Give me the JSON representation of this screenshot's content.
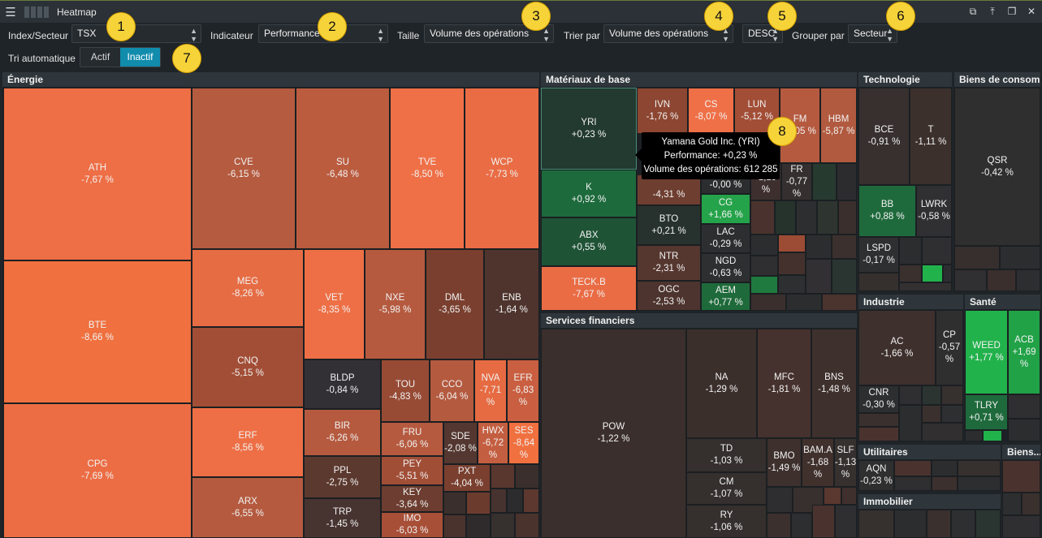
{
  "window": {
    "title": "Heatmap",
    "icons": [
      "menu-icon",
      "grip-icon"
    ],
    "controls": [
      "popout-icon",
      "pin-icon",
      "restore-icon",
      "close-icon"
    ]
  },
  "toolbar": {
    "index_label": "Index/Secteur",
    "index_value": "TSX",
    "indicator_label": "Indicateur",
    "indicator_value": "Performance",
    "size_label": "Taille",
    "size_value": "Volume des opérations",
    "sort_label": "Trier par",
    "sort_value": "Volume des opérations",
    "order_value": "DESC",
    "group_label": "Grouper par",
    "group_value": "Secteur",
    "auto_label": "Tri automatique",
    "auto_on": "Actif",
    "auto_off": "Inactif"
  },
  "badges": [
    "1",
    "2",
    "3",
    "4",
    "5",
    "6",
    "7",
    "8"
  ],
  "tooltip": {
    "name": "Yamana Gold Inc. (YRI)",
    "perf": "Performance: +0,23 %",
    "volume": "Volume des opérations: 612 285"
  },
  "colors": {
    "strong_neg": "#ef7047",
    "mid_neg": "#b65a3f",
    "dark_neg": "#3a2f2c",
    "neutral": "#2c2f31",
    "pos": "#1f6a3c",
    "strong_pos": "#22b24c"
  },
  "sectors": [
    {
      "name": "Énergie"
    },
    {
      "name": "Matériaux de base"
    },
    {
      "name": "Technologie"
    },
    {
      "name": "Biens de consom..."
    },
    {
      "name": "Services financiers"
    },
    {
      "name": "Industrie"
    },
    {
      "name": "Santé"
    },
    {
      "name": "Utilitaires"
    },
    {
      "name": "Biens..."
    },
    {
      "name": "Immobilier"
    }
  ],
  "tiles": [
    {
      "t": "ATH",
      "v": "-7,67 %"
    },
    {
      "t": "BTE",
      "v": "-8,66 %"
    },
    {
      "t": "CPG",
      "v": "-7,69 %"
    },
    {
      "t": "CVE",
      "v": "-6,15 %"
    },
    {
      "t": "SU",
      "v": "-6,48 %"
    },
    {
      "t": "TVE",
      "v": "-8,50 %"
    },
    {
      "t": "WCP",
      "v": "-7,73 %"
    },
    {
      "t": "MEG",
      "v": "-8,26 %"
    },
    {
      "t": "CNQ",
      "v": "-5,15 %"
    },
    {
      "t": "ERF",
      "v": "-8,56 %"
    },
    {
      "t": "ARX",
      "v": "-6,55 %"
    },
    {
      "t": "VET",
      "v": "-8,35 %"
    },
    {
      "t": "NXE",
      "v": "-5,98 %"
    },
    {
      "t": "DML",
      "v": "-3,65 %"
    },
    {
      "t": "ENB",
      "v": "-1,64 %"
    },
    {
      "t": "BLDP",
      "v": "-0,84 %"
    },
    {
      "t": "BIR",
      "v": "-6,26 %"
    },
    {
      "t": "PPL",
      "v": "-2,75 %"
    },
    {
      "t": "TRP",
      "v": "-1,45 %"
    },
    {
      "t": "TOU",
      "v": "-4,83 %"
    },
    {
      "t": "CCO",
      "v": "-6,04 %"
    },
    {
      "t": "NVA",
      "v": "-7,71 %"
    },
    {
      "t": "EFR",
      "v": "-6,83 %"
    },
    {
      "t": "FRU",
      "v": "-6,06 %"
    },
    {
      "t": "SDE",
      "v": "-2,08 %"
    },
    {
      "t": "HWX",
      "v": "-6,72 %"
    },
    {
      "t": "SES",
      "v": "-8,64 %"
    },
    {
      "t": "PEY",
      "v": "-5,51 %"
    },
    {
      "t": "PXT",
      "v": "-4,04 %"
    },
    {
      "t": "KEY",
      "v": "-3,64 %"
    },
    {
      "t": "IMO",
      "v": "-6,03 %"
    },
    {
      "t": "YRI",
      "v": "+0,23 %"
    },
    {
      "t": "K",
      "v": "+0,92 %"
    },
    {
      "t": "ABX",
      "v": "+0,55 %"
    },
    {
      "t": "TECK.B",
      "v": "-7,67 %"
    },
    {
      "t": "IVN",
      "v": "-1,76 %"
    },
    {
      "t": "CS",
      "v": "-8,07 %"
    },
    {
      "t": "LUN",
      "v": "-5,12 %"
    },
    {
      "t": "FM",
      "v": "-6,05 %"
    },
    {
      "t": "HBM",
      "v": "-5,87 %"
    },
    {
      "t": "",
      "v": "-4,31 %"
    },
    {
      "t": "",
      "v": "-0,00 %"
    },
    {
      "t": "",
      "v": "-1,19 %"
    },
    {
      "t": "FR",
      "v": "-0,77 %"
    },
    {
      "t": "BTO",
      "v": "+0,21 %"
    },
    {
      "t": "CG",
      "v": "+1,66 %"
    },
    {
      "t": "LAC",
      "v": "-0,29 %"
    },
    {
      "t": "NTR",
      "v": "-2,31 %"
    },
    {
      "t": "NGD",
      "v": "-0,63 %"
    },
    {
      "t": "OGC",
      "v": "-2,53 %"
    },
    {
      "t": "AEM",
      "v": "+0,77 %"
    },
    {
      "t": "POW",
      "v": "-1,22 %"
    },
    {
      "t": "NA",
      "v": "-1,29 %"
    },
    {
      "t": "MFC",
      "v": "-1,81 %"
    },
    {
      "t": "BNS",
      "v": "-1,48 %"
    },
    {
      "t": "TD",
      "v": "-1,03 %"
    },
    {
      "t": "BMO",
      "v": "-1,49 %"
    },
    {
      "t": "BAM.A",
      "v": "-1,68 %"
    },
    {
      "t": "SLF",
      "v": "-1,13 %"
    },
    {
      "t": "CM",
      "v": "-1,07 %"
    },
    {
      "t": "RY",
      "v": "-1,06 %"
    },
    {
      "t": "BCE",
      "v": "-0,91 %"
    },
    {
      "t": "T",
      "v": "-1,11 %"
    },
    {
      "t": "BB",
      "v": "+0,88 %"
    },
    {
      "t": "LWRK",
      "v": "-0,58 %"
    },
    {
      "t": "LSPD",
      "v": "-0,17 %"
    },
    {
      "t": "QSR",
      "v": "-0,42 %"
    },
    {
      "t": "AC",
      "v": "-1,66 %"
    },
    {
      "t": "CP",
      "v": "-0,57 %"
    },
    {
      "t": "CNR",
      "v": "-0,30 %"
    },
    {
      "t": "WEED",
      "v": "+1,77 %"
    },
    {
      "t": "ACB",
      "v": "+1,69 %"
    },
    {
      "t": "TLRY",
      "v": "+0,71 %"
    },
    {
      "t": "AQN",
      "v": "-0,23 %"
    }
  ]
}
